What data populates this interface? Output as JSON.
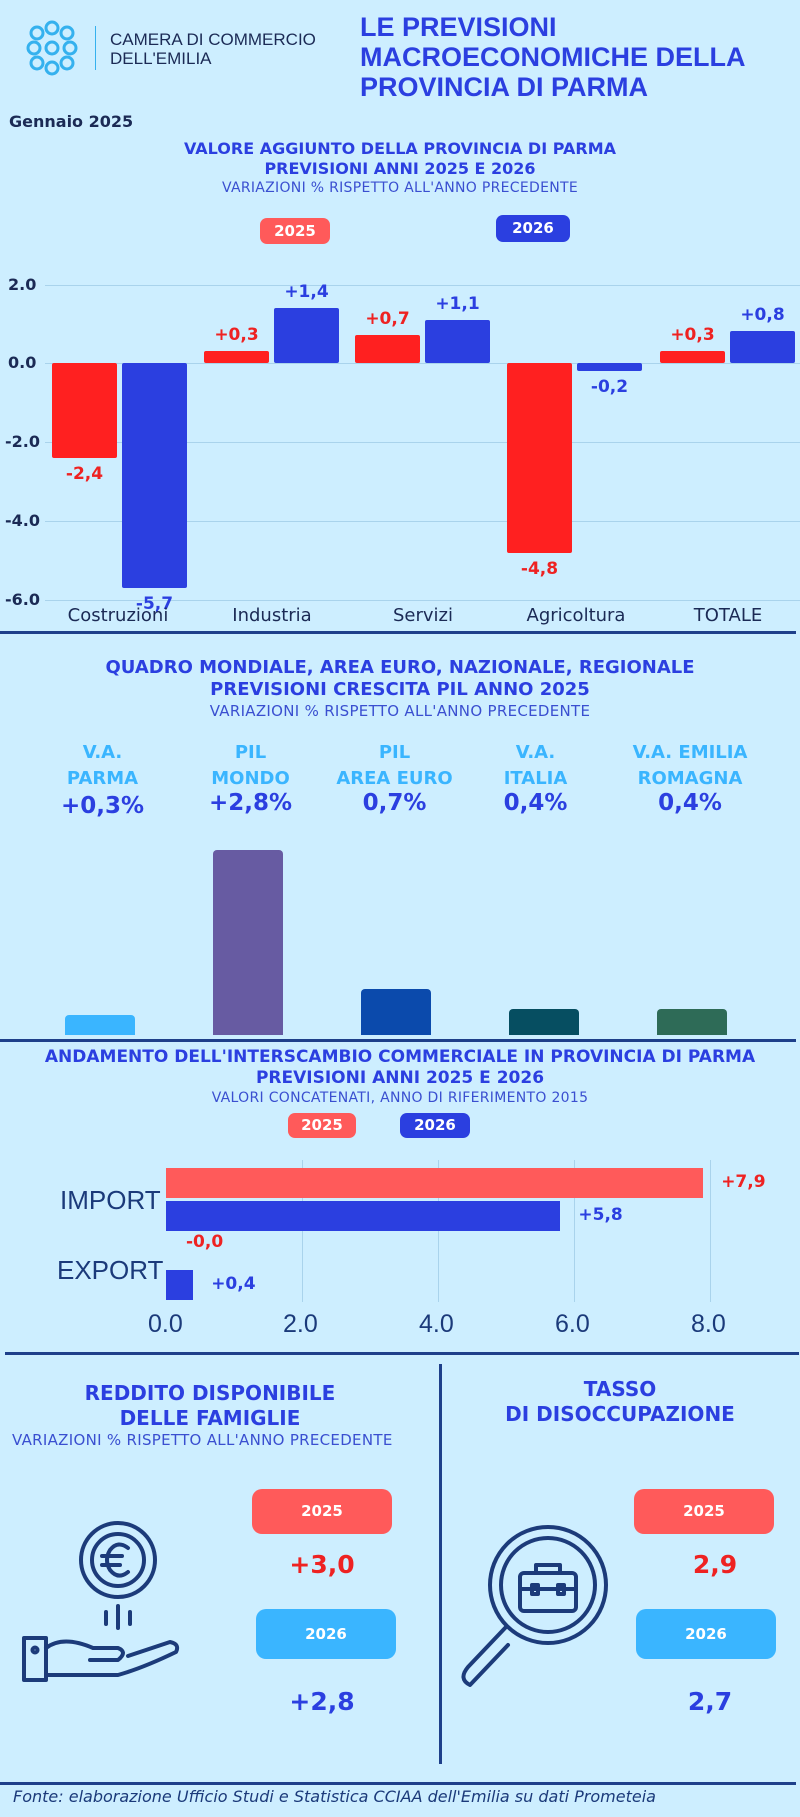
{
  "header": {
    "org_line1": "CAMERA DI COMMERCIO",
    "org_line2": "DELL'EMILIA",
    "title_line1": "LE PREVISIONI",
    "title_line2": "MACROECONOMICHE DELLA",
    "title_line3": "PROVINCIA DI PARMA",
    "date": "Gennaio 2025"
  },
  "colors": {
    "red": "#ff2020",
    "blue": "#2b3fe0",
    "light_blue": "#3ab5ff",
    "pill_red": "#ff5a5a"
  },
  "section1": {
    "title_line1": "VALORE AGGIUNTO DELLA PROVINCIA DI PARMA",
    "title_line2": "PREVISIONI ANNI 2025 E 2026",
    "subtitle": "VARIAZIONI % RISPETTO ALL'ANNO PRECEDENTE",
    "legend_2025": "2025",
    "legend_2026": "2026"
  },
  "section2": {
    "title_line1": "QUADRO MONDIALE, AREA EURO, NAZIONALE, REGIONALE",
    "title_line2": "PREVISIONI CRESCITA PIL ANNO 2025",
    "subtitle": "VARIAZIONI % RISPETTO ALL'ANNO PRECEDENTE"
  },
  "section3": {
    "title_line1": "ANDAMENTO DELL'INTERSCAMBIO COMMERCIALE IN PROVINCIA DI PARMA",
    "title_line2": "PREVISIONI ANNI  2025 E 2026",
    "subtitle": "VALORI CONCATENATI, ANNO DI RIFERIMENTO 2015",
    "legend_2025": "2025",
    "legend_2026": "2026"
  },
  "section4": {
    "income_title_line1": "REDDITO DISPONIBILE",
    "income_title_line2": "DELLE FAMIGLIE",
    "income_subtitle": "VARIAZIONI % RISPETTO ALL'ANNO PRECEDENTE",
    "income_2025_label": "2025",
    "income_2025_value": "+3,0",
    "income_2026_label": "2026",
    "income_2026_value": "+2,8",
    "unemp_title_line1": "TASSO",
    "unemp_title_line2": "DI DISOCCUPAZIONE",
    "unemp_2025_label": "2025",
    "unemp_2025_value": "2,9",
    "unemp_2026_label": "2026",
    "unemp_2026_value": "2,7"
  },
  "footer": {
    "source": "Fonte: elaborazione Ufficio Studi e Statistica CCIAA dell'Emilia su dati Prometeia"
  },
  "chart_data": [
    {
      "type": "bar",
      "categories": [
        "Costruzioni",
        "Industria",
        "Servizi",
        "Agricoltura",
        "TOTALE"
      ],
      "series": [
        {
          "name": "2025",
          "values": [
            -2.4,
            0.3,
            0.7,
            -4.8,
            0.3
          ],
          "labels": [
            "-2,4",
            "+0,3",
            "+0,7",
            "-4,8",
            "+0,3"
          ],
          "color": "#ff2020"
        },
        {
          "name": "2026",
          "values": [
            -5.7,
            1.4,
            1.1,
            -0.2,
            0.8
          ],
          "labels": [
            "-5,7",
            "+1,4",
            "+1,1",
            "-0,2",
            "+0,8"
          ],
          "color": "#2b3fe0"
        }
      ],
      "yticks": [
        "2.0",
        "0.0",
        "-2.0",
        "-4.0",
        "-6.0"
      ],
      "ylim": [
        -6.0,
        2.0
      ],
      "grid": true
    },
    {
      "type": "bar",
      "categories": [
        {
          "line1": "V.A.",
          "line2": "PARMA"
        },
        {
          "line1": "PIL",
          "line2": "MONDO"
        },
        {
          "line1": "PIL",
          "line2": "AREA EURO"
        },
        {
          "line1": "V.A.",
          "line2": "ITALIA"
        },
        {
          "line1": "V.A. EMILIA",
          "line2": "ROMAGNA"
        }
      ],
      "values": [
        0.3,
        2.8,
        0.7,
        0.4,
        0.4
      ],
      "value_labels": [
        "+0,3%",
        "+2,8%",
        "0,7%",
        "0,4%",
        "0,4%"
      ],
      "colors": [
        "#3ab5ff",
        "#675ba2",
        "#0b4aac",
        "#064e61",
        "#2e6b57"
      ]
    },
    {
      "type": "bar",
      "orientation": "horizontal",
      "categories": [
        "IMPORT",
        "EXPORT"
      ],
      "series": [
        {
          "name": "2025",
          "values": [
            7.9,
            0.0
          ],
          "labels": [
            "+7,9",
            "-0,0"
          ],
          "color": "#ff5a5a"
        },
        {
          "name": "2026",
          "values": [
            5.8,
            0.4
          ],
          "labels": [
            "+5,8",
            "+0,4"
          ],
          "color": "#2b3fe0"
        }
      ],
      "xticks": [
        "0.0",
        "2.0",
        "4.0",
        "6.0",
        "8.0"
      ],
      "xlim": [
        0,
        8.0
      ],
      "grid": true
    }
  ]
}
